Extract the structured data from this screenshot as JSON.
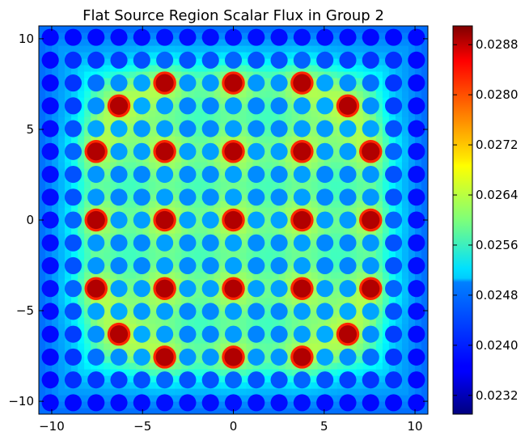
{
  "chart_data": {
    "type": "heatmap",
    "title": "Flat Source Region Scalar Flux in Group 2",
    "xlabel": "",
    "ylabel": "",
    "xlim": [
      -10.71,
      10.71
    ],
    "ylim": [
      -10.71,
      10.71
    ],
    "x_ticks": [
      "−10",
      "−5",
      "0",
      "5",
      "10"
    ],
    "x_tick_values": [
      -10,
      -5,
      0,
      5,
      10
    ],
    "y_ticks": [
      "−10",
      "−5",
      "0",
      "5",
      "10"
    ],
    "y_tick_values": [
      -10,
      -5,
      0,
      5,
      10
    ],
    "colormap": "jet",
    "color_range": [
      0.0229,
      0.0291
    ],
    "colorbar_ticks": [
      "0.0232",
      "0.0240",
      "0.0248",
      "0.0256",
      "0.0264",
      "0.0272",
      "0.0280",
      "0.0288"
    ],
    "colorbar_tick_values": [
      0.0232,
      0.024,
      0.0248,
      0.0256,
      0.0264,
      0.0272,
      0.028,
      0.0288
    ],
    "pin_pitch": 1.26,
    "lattice_size": 17,
    "guide_tube_positions": [
      [
        -3.78,
        7.56
      ],
      [
        0,
        7.56
      ],
      [
        3.78,
        7.56
      ],
      [
        -6.3,
        6.3
      ],
      [
        6.3,
        6.3
      ],
      [
        -7.56,
        3.78
      ],
      [
        -3.78,
        3.78
      ],
      [
        0,
        3.78
      ],
      [
        3.78,
        3.78
      ],
      [
        7.56,
        3.78
      ],
      [
        -7.56,
        0
      ],
      [
        -3.78,
        0
      ],
      [
        0,
        0
      ],
      [
        3.78,
        0
      ],
      [
        7.56,
        0
      ],
      [
        -7.56,
        -3.78
      ],
      [
        -3.78,
        -3.78
      ],
      [
        0,
        -3.78
      ],
      [
        3.78,
        -3.78
      ],
      [
        7.56,
        -3.78
      ],
      [
        -6.3,
        -6.3
      ],
      [
        6.3,
        -6.3
      ],
      [
        -3.78,
        -7.56
      ],
      [
        0,
        -7.56
      ],
      [
        3.78,
        -7.56
      ]
    ],
    "guide_tube_flux": 0.0286,
    "fuel_pin_flux_range": [
      0.0236,
      0.0251
    ],
    "moderator_flux_range": [
      0.0243,
      0.0272
    ]
  }
}
